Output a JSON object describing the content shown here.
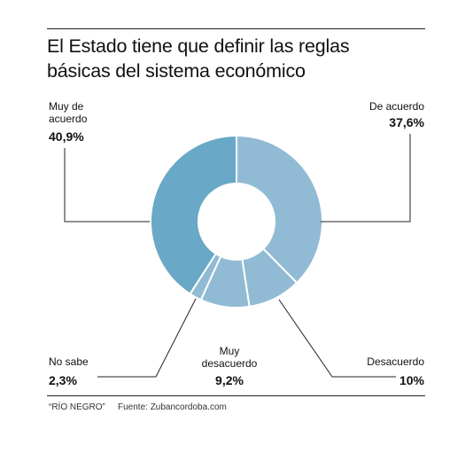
{
  "title_line1": "El Estado tiene que definir las reglas",
  "title_line2": "básicas del sistema económico",
  "chart_data": {
    "type": "pie",
    "subtype": "donut",
    "title": "El Estado tiene que definir las reglas básicas del sistema económico",
    "categories": [
      "De acuerdo",
      "Desacuerdo",
      "Muy desacuerdo",
      "No sabe",
      "Muy de acuerdo"
    ],
    "values": [
      37.6,
      10,
      9.2,
      2.3,
      40.9
    ],
    "value_labels": [
      "37,6%",
      "10%",
      "9,2%",
      "2,3%",
      "40,9%"
    ],
    "colors": [
      "#91bbd4",
      "#91bbd4",
      "#91bbd4",
      "#91bbd4",
      "#69a8c6"
    ]
  },
  "labels": {
    "muy_de_acuerdo_line1": "Muy de",
    "muy_de_acuerdo_line2": "acuerdo",
    "muy_de_acuerdo_value": "40,9%",
    "de_acuerdo": "De acuerdo",
    "de_acuerdo_value": "37,6%",
    "no_sabe": "No sabe",
    "no_sabe_value": "2,3%",
    "muy_desacuerdo_line1": "Muy",
    "muy_desacuerdo_line2": "desacuerdo",
    "muy_desacuerdo_value": "9,2%",
    "desacuerdo": "Desacuerdo",
    "desacuerdo_value": "10%"
  },
  "footer": {
    "source_outlet": "“RÍO NEGRO”",
    "source": "Fuente: Zubancordoba.com"
  }
}
